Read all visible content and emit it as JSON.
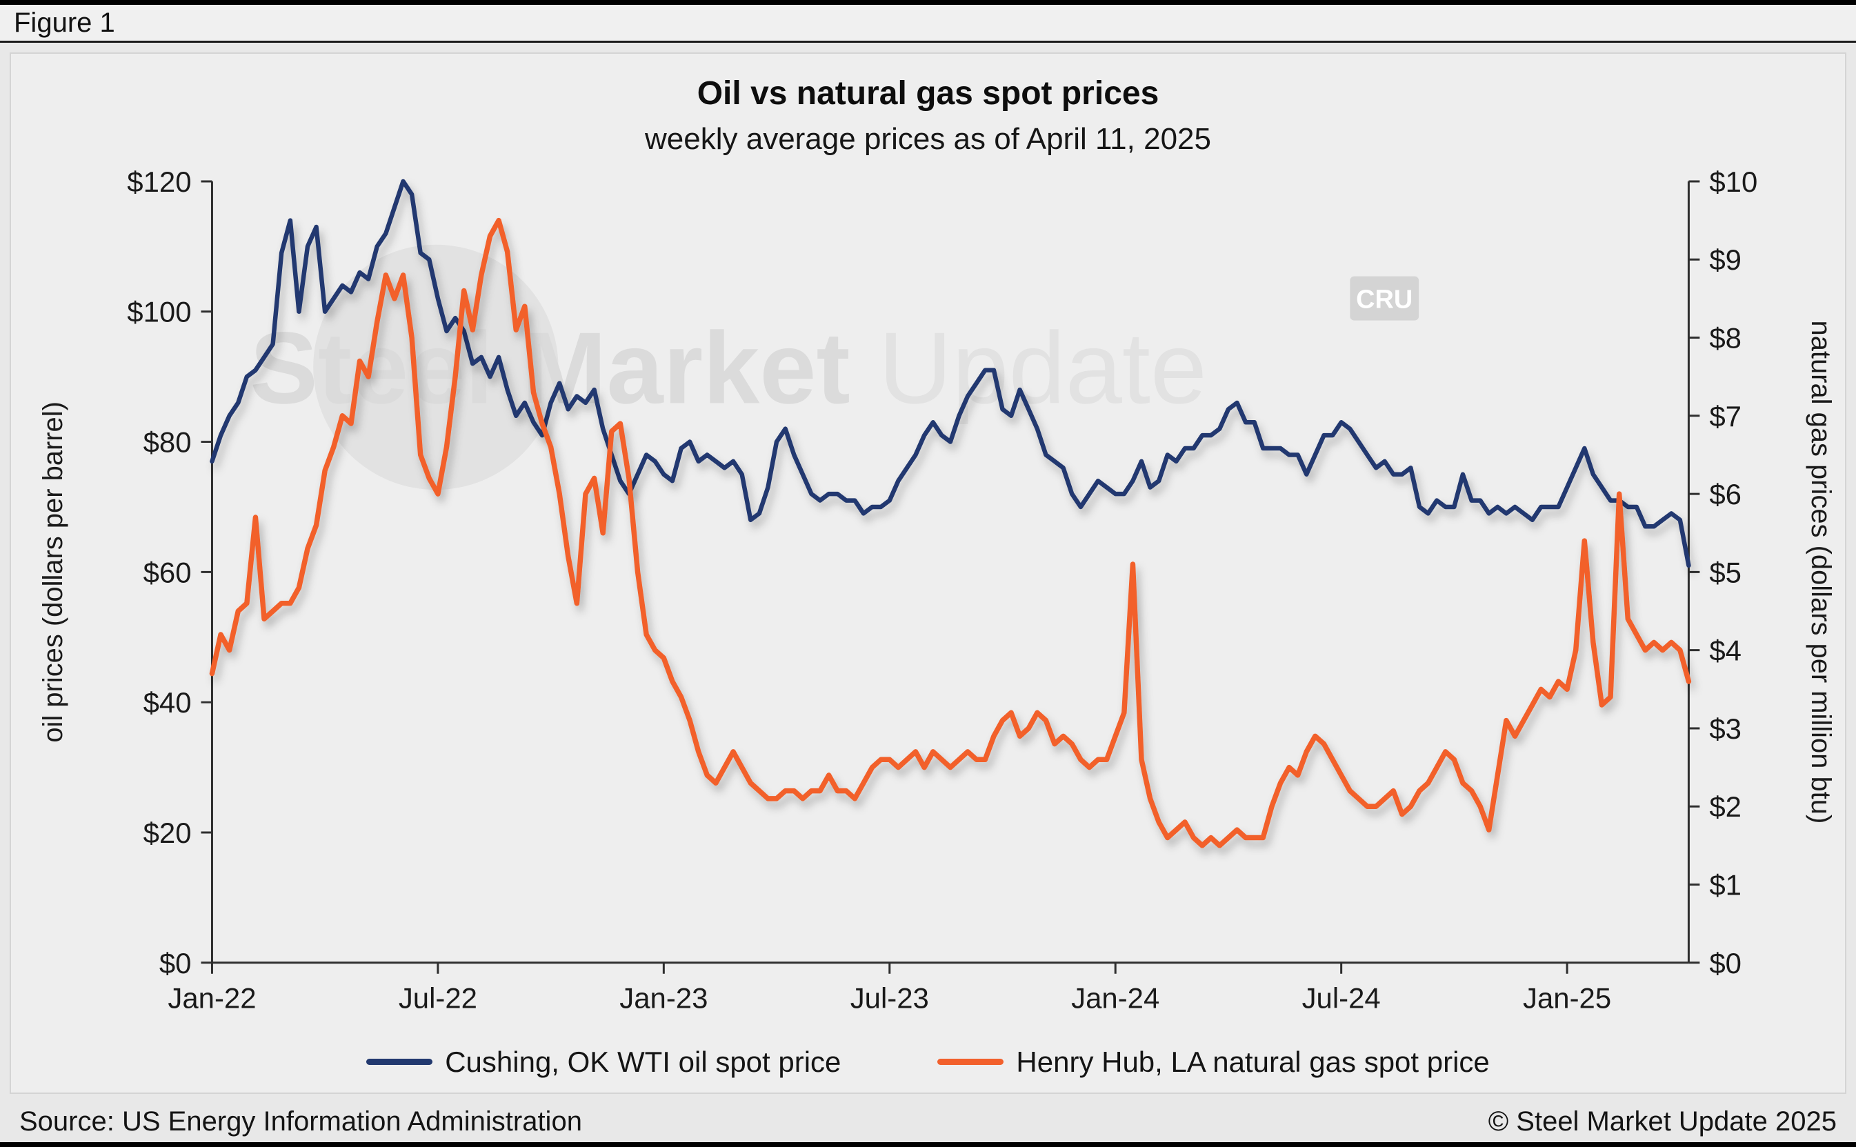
{
  "figure_label": "Figure 1",
  "watermark": {
    "text_bold": "Steel Market",
    "text_light": "Update",
    "badge": "CRU"
  },
  "legend": [
    {
      "label": "Cushing, OK WTI oil spot price",
      "color": "#22396f"
    },
    {
      "label": "Henry Hub, LA natural gas spot price",
      "color": "#f2602c"
    }
  ],
  "footer": {
    "source": "Source: US Energy Information Administration",
    "copyright": "© Steel Market Update 2025"
  },
  "chart_data": {
    "type": "line",
    "title": "Oil vs natural gas spot prices",
    "subtitle": "weekly average prices as of April 11, 2025",
    "x_unit": "weekly averages, first week of Jan 2022 through week ending April 11, 2025",
    "x_tick_labels": [
      "Jan-22",
      "Jul-22",
      "Jan-23",
      "Jul-23",
      "Jan-24",
      "Jul-24",
      "Jan-25"
    ],
    "x_tick_indices": [
      0,
      26,
      52,
      78,
      104,
      130,
      156
    ],
    "axes": {
      "left": {
        "label": "oil prices (dollars per barrel)",
        "min": 0,
        "max": 120,
        "ticks": [
          "$0",
          "$20",
          "$40",
          "$60",
          "$80",
          "$100",
          "$120"
        ]
      },
      "right": {
        "label": "natural gas prices (dollars per million btu)",
        "min": 0,
        "max": 10,
        "ticks": [
          "$0",
          "$1",
          "$2",
          "$3",
          "$4",
          "$5",
          "$6",
          "$7",
          "$8",
          "$9",
          "$10"
        ]
      }
    },
    "legend_position": "bottom",
    "grid": false,
    "series": [
      {
        "name": "Cushing, OK WTI oil spot price",
        "axis": "left",
        "color": "#22396f",
        "values": [
          77,
          81,
          84,
          86,
          90,
          91,
          93,
          95,
          109,
          114,
          100,
          110,
          113,
          100,
          102,
          104,
          103,
          106,
          105,
          110,
          112,
          116,
          120,
          118,
          109,
          108,
          102,
          97,
          99,
          97,
          92,
          93,
          90,
          93,
          88,
          84,
          86,
          83,
          81,
          86,
          89,
          85,
          87,
          86,
          88,
          82,
          78,
          74,
          72,
          75,
          78,
          77,
          75,
          74,
          79,
          80,
          77,
          78,
          77,
          76,
          77,
          75,
          68,
          69,
          73,
          80,
          82,
          78,
          75,
          72,
          71,
          72,
          72,
          71,
          71,
          69,
          70,
          70,
          71,
          74,
          76,
          78,
          81,
          83,
          81,
          80,
          84,
          87,
          89,
          91,
          91,
          85,
          84,
          88,
          85,
          82,
          78,
          77,
          76,
          72,
          70,
          72,
          74,
          73,
          72,
          72,
          74,
          77,
          73,
          74,
          78,
          77,
          79,
          79,
          81,
          81,
          82,
          85,
          86,
          83,
          83,
          79,
          79,
          79,
          78,
          78,
          75,
          78,
          81,
          81,
          83,
          82,
          80,
          78,
          76,
          77,
          75,
          75,
          76,
          70,
          69,
          71,
          70,
          70,
          75,
          71,
          71,
          69,
          70,
          69,
          70,
          69,
          68,
          70,
          70,
          70,
          73,
          76,
          79,
          75,
          73,
          71,
          71,
          70,
          70,
          67,
          67,
          68,
          69,
          68,
          61
        ]
      },
      {
        "name": "Henry Hub, LA natural gas spot price",
        "axis": "right",
        "color": "#f2602c",
        "values": [
          3.7,
          4.2,
          4.0,
          4.5,
          4.6,
          5.7,
          4.4,
          4.5,
          4.6,
          4.6,
          4.8,
          5.3,
          5.6,
          6.3,
          6.6,
          7.0,
          6.9,
          7.7,
          7.5,
          8.2,
          8.8,
          8.5,
          8.8,
          8.0,
          6.5,
          6.2,
          6.0,
          6.6,
          7.5,
          8.6,
          8.1,
          8.8,
          9.3,
          9.5,
          9.1,
          8.1,
          8.4,
          7.3,
          6.9,
          6.6,
          6.0,
          5.2,
          4.6,
          6.0,
          6.2,
          5.5,
          6.8,
          6.9,
          6.2,
          5.0,
          4.2,
          4.0,
          3.9,
          3.6,
          3.4,
          3.1,
          2.7,
          2.4,
          2.3,
          2.5,
          2.7,
          2.5,
          2.3,
          2.2,
          2.1,
          2.1,
          2.2,
          2.2,
          2.1,
          2.2,
          2.2,
          2.4,
          2.2,
          2.2,
          2.1,
          2.3,
          2.5,
          2.6,
          2.6,
          2.5,
          2.6,
          2.7,
          2.5,
          2.7,
          2.6,
          2.5,
          2.6,
          2.7,
          2.6,
          2.6,
          2.9,
          3.1,
          3.2,
          2.9,
          3.0,
          3.2,
          3.1,
          2.8,
          2.9,
          2.8,
          2.6,
          2.5,
          2.6,
          2.6,
          2.9,
          3.2,
          5.1,
          2.6,
          2.1,
          1.8,
          1.6,
          1.7,
          1.8,
          1.6,
          1.5,
          1.6,
          1.5,
          1.6,
          1.7,
          1.6,
          1.6,
          1.6,
          2.0,
          2.3,
          2.5,
          2.4,
          2.7,
          2.9,
          2.8,
          2.6,
          2.4,
          2.2,
          2.1,
          2.0,
          2.0,
          2.1,
          2.2,
          1.9,
          2.0,
          2.2,
          2.3,
          2.5,
          2.7,
          2.6,
          2.3,
          2.2,
          2.0,
          1.7,
          2.4,
          3.1,
          2.9,
          3.1,
          3.3,
          3.5,
          3.4,
          3.6,
          3.5,
          4.0,
          5.4,
          4.1,
          3.3,
          3.4,
          6.0,
          4.4,
          4.2,
          4.0,
          4.1,
          4.0,
          4.1,
          4.0,
          3.6
        ]
      }
    ]
  }
}
